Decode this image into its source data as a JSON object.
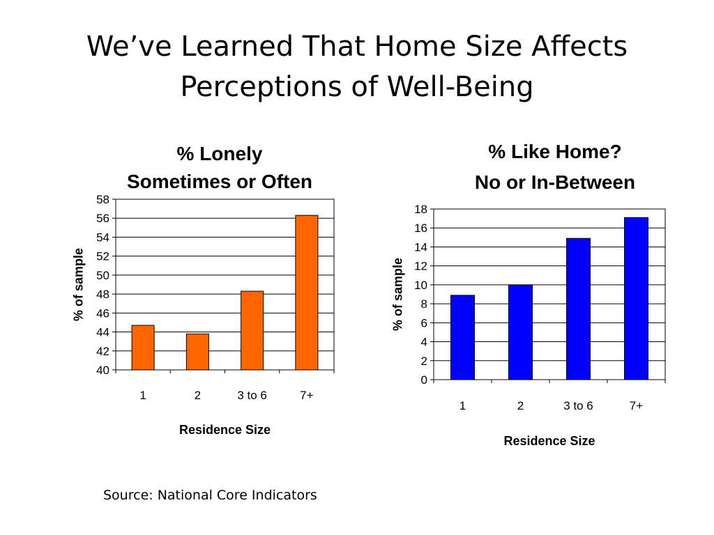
{
  "slide": {
    "title": "We’ve Learned That Home Size Affects\nPerceptions of Well-Being",
    "source": "Source: National Core Indicators"
  },
  "chart_data": [
    {
      "type": "bar",
      "title": [
        "% Lonely",
        "Sometimes or Often"
      ],
      "xlabel": "Residence Size",
      "ylabel": "% of sample",
      "categories": [
        "1",
        "2",
        "3 to 6",
        "7+"
      ],
      "values": [
        44.7,
        43.8,
        48.3,
        56.3
      ],
      "ylim": [
        40,
        58
      ],
      "ytick_step": 2,
      "grid": true,
      "bar_color": "#ff6600"
    },
    {
      "type": "bar",
      "title": [
        "% Like Home?",
        "No or In-Between"
      ],
      "xlabel": "Residence Size",
      "ylabel": "% of sample",
      "categories": [
        "1",
        "2",
        "3 to 6",
        "7+"
      ],
      "values": [
        8.9,
        10.0,
        14.9,
        17.1
      ],
      "ylim": [
        0,
        18
      ],
      "ytick_step": 2,
      "grid": true,
      "bar_color": "#0000ff"
    }
  ]
}
